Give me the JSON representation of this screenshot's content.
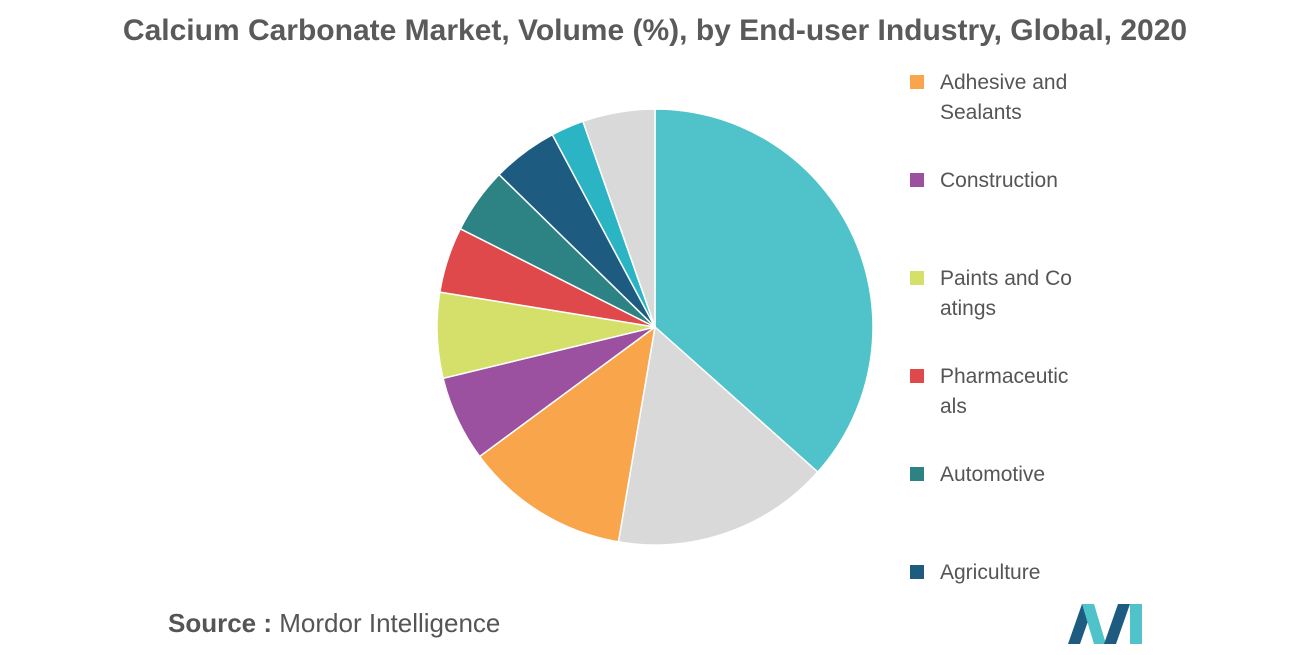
{
  "chart_data": {
    "type": "pie",
    "title": "Calcium Carbonate Market, Volume (%), by End-user Industry, Global, 2020",
    "slices": [
      {
        "label": "",
        "value": 37.5,
        "color": "#4fc3c9"
      },
      {
        "label": "",
        "value": 16.5,
        "color": "#d9d9d9"
      },
      {
        "label": "Adhesive and Sealants",
        "value": 12.5,
        "color": "#f9a54b"
      },
      {
        "label": "Construction",
        "value": 6.5,
        "color": "#9b51a0"
      },
      {
        "label": "Paints and Coatings",
        "value": 6.5,
        "color": "#d4e06a"
      },
      {
        "label": "Pharmaceuticals",
        "value": 5.0,
        "color": "#e0494b"
      },
      {
        "label": "Automotive",
        "value": 5.0,
        "color": "#2d8384"
      },
      {
        "label": "Agriculture",
        "value": 5.0,
        "color": "#1e5b80"
      },
      {
        "label": "",
        "value": 2.5,
        "color": "#2bb5c4"
      },
      {
        "label": "",
        "value": 5.5,
        "color": "#d9d9d9"
      }
    ],
    "legend": [
      {
        "label": "Adhesive and Sealants",
        "color": "#f9a54b"
      },
      {
        "label": "Construction",
        "color": "#9b51a0"
      },
      {
        "label": "Paints and Coatings",
        "color": "#d4e06a"
      },
      {
        "label": "Pharmaceuticals",
        "color": "#e0494b"
      },
      {
        "label": "Automotive",
        "color": "#2d8384"
      },
      {
        "label": "Agriculture",
        "color": "#1e5b80"
      }
    ],
    "legend_position": "right"
  },
  "footer": {
    "source_label": "Source :",
    "source_value": "Mordor Intelligence"
  },
  "colors": {
    "title": "#5a5a5a",
    "text": "#555555",
    "logo_dark": "#1e5b80",
    "logo_light": "#4fc3c9"
  }
}
